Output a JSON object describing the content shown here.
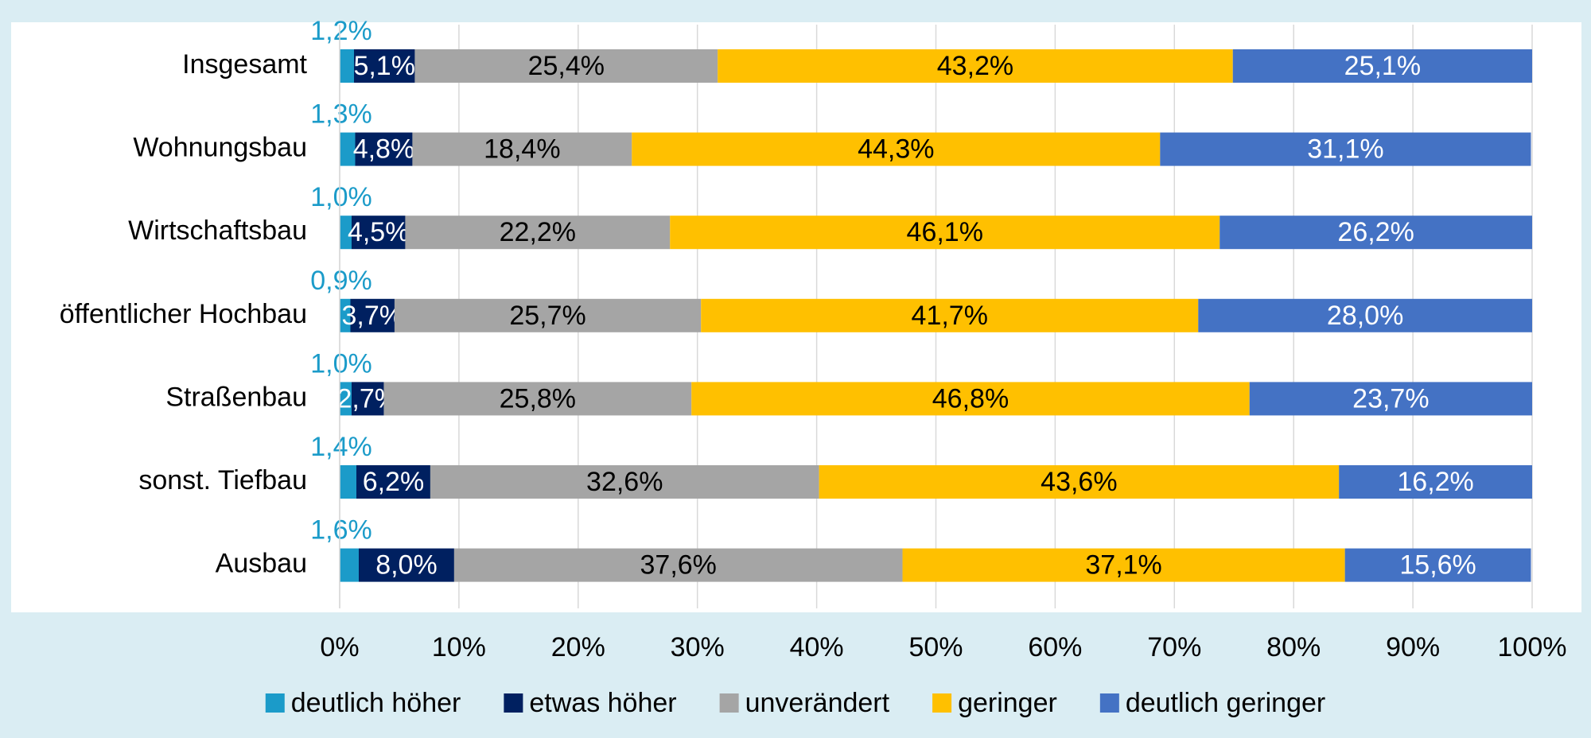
{
  "chart_data": {
    "type": "stacked_bar_horizontal",
    "categories": [
      "Insgesamt",
      "Wohnungsbau",
      "Wirtschaftsbau",
      "öffentlicher Hochbau",
      "Straßenbau",
      "sonst. Tiefbau",
      "Ausbau"
    ],
    "series": [
      {
        "name": "deutlich höher",
        "color": "#1b9bc9",
        "label_color": "#1b9bc9",
        "values": [
          1.2,
          1.3,
          1.0,
          0.9,
          1.0,
          1.4,
          1.6
        ],
        "value_labels": [
          "1,2%",
          "1,3%",
          "1,0%",
          "0,9%",
          "1,0%",
          "1,4%",
          "1,6%"
        ]
      },
      {
        "name": "etwas höher",
        "color": "#002060",
        "label_color": "#ffffff",
        "values": [
          5.1,
          4.8,
          4.5,
          3.7,
          2.7,
          6.2,
          8.0
        ],
        "value_labels": [
          "5,1%",
          "4,8%",
          "4,5%",
          "3,7%",
          "2,7%",
          "6,2%",
          "8,0%"
        ]
      },
      {
        "name": "unverändert",
        "color": "#a5a5a5",
        "label_color": "#000000",
        "values": [
          25.4,
          18.4,
          22.2,
          25.7,
          25.8,
          32.6,
          37.6
        ],
        "value_labels": [
          "25,4%",
          "18,4%",
          "22,2%",
          "25,7%",
          "25,8%",
          "32,6%",
          "37,6%"
        ]
      },
      {
        "name": "geringer",
        "color": "#ffc000",
        "label_color": "#000000",
        "values": [
          43.2,
          44.3,
          46.1,
          41.7,
          46.8,
          43.6,
          37.1
        ],
        "value_labels": [
          "43,2%",
          "44,3%",
          "46,1%",
          "41,7%",
          "46,8%",
          "43,6%",
          "37,1%"
        ]
      },
      {
        "name": "deutlich geringer",
        "color": "#4472c4",
        "label_color": "#ffffff",
        "values": [
          25.1,
          31.1,
          26.2,
          28.0,
          23.7,
          16.2,
          15.6
        ],
        "value_labels": [
          "25,1%",
          "31,1%",
          "26,2%",
          "28,0%",
          "23,7%",
          "16,2%",
          "15,6%"
        ]
      }
    ],
    "xlim": [
      0,
      100
    ],
    "xticks": [
      {
        "value": 0,
        "label": "0%"
      },
      {
        "value": 10,
        "label": "10%"
      },
      {
        "value": 20,
        "label": "20%"
      },
      {
        "value": 30,
        "label": "30%"
      },
      {
        "value": 40,
        "label": "40%"
      },
      {
        "value": 50,
        "label": "50%"
      },
      {
        "value": 60,
        "label": "60%"
      },
      {
        "value": 70,
        "label": "70%"
      },
      {
        "value": 80,
        "label": "80%"
      },
      {
        "value": 90,
        "label": "90%"
      },
      {
        "value": 100,
        "label": "100%"
      }
    ],
    "grid": true,
    "legend": "bottom"
  }
}
